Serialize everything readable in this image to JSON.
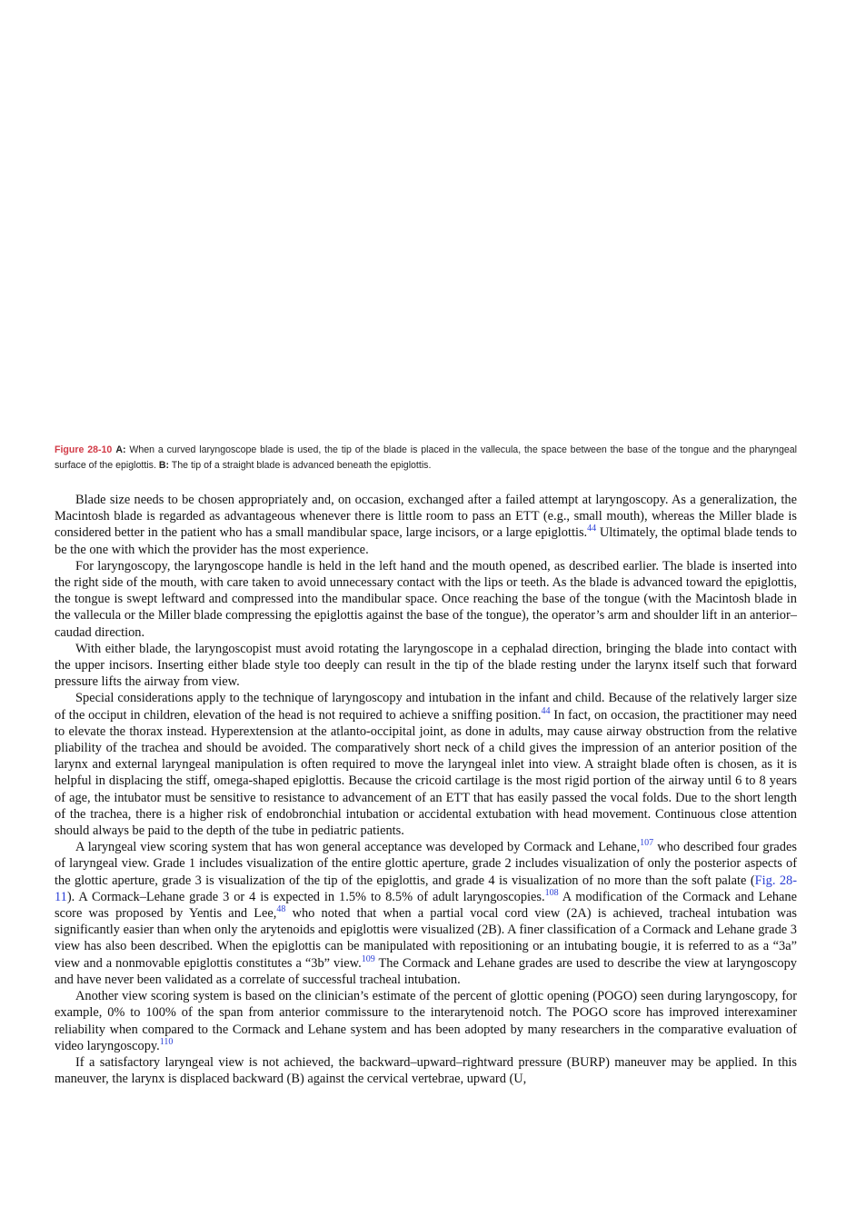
{
  "caption": {
    "label": "Figure 28-10",
    "a_marker": "A:",
    "a_text": " When a curved laryngoscope blade is used, the tip of the blade is placed in the vallecula, the space between the base of the tongue and the pharyngeal surface of the epiglottis. ",
    "b_marker": "B:",
    "b_text": " The tip of a straight blade is advanced beneath the epiglottis."
  },
  "paragraphs": {
    "p1": {
      "a": "Blade size needs to be chosen appropriately and, on occasion, exchanged after a failed attempt at laryngoscopy. As a generalization, the Macintosh blade is regarded as advantageous whenever there is little room to pass an ETT (e.g., small mouth), whereas the Miller blade is considered better in the patient who has a small mandibular space, large incisors, or a large epiglottis.",
      "ref1": "44",
      "b": " Ultimately, the optimal blade tends to be the one with which the provider has the most experience."
    },
    "p2": {
      "a": "For laryngoscopy, the laryngoscope handle is held in the left hand and the mouth opened, as described earlier. The blade is inserted into the right side of the mouth, with care taken to avoid unnecessary contact with the lips or teeth. As the blade is advanced toward the epiglottis, the tongue is swept leftward and compressed into the mandibular space. Once reaching the base of the tongue (with the Macintosh blade in the vallecula or the Miller blade compressing the epiglottis against the base of the tongue), the operator’s arm and shoulder lift in an anterior–caudad direction."
    },
    "p3": {
      "a": "With either blade, the laryngoscopist must avoid rotating the laryngoscope in a cephalad direction, bringing the blade into contact with the upper incisors. Inserting either blade style too deeply can result in the tip of the blade resting under the larynx itself such that forward pressure lifts the airway from view."
    },
    "p4": {
      "a": "Special considerations apply to the technique of laryngoscopy and intubation in the infant and child. Because of the relatively larger size of the occiput in children, elevation of the head is not required to achieve a sniffing position.",
      "ref1": "44",
      "b": " In fact, on occasion, the practitioner may need to elevate the thorax instead. Hyperextension at the atlanto-occipital joint, as done in adults, may cause airway obstruction from the relative pliability of the trachea and should be avoided. The comparatively short neck of a child gives the impression of an anterior position of the larynx and external laryngeal manipulation is often required to move the laryngeal inlet into view. A straight blade often is chosen, as it is helpful in displacing the stiff, omega-shaped epiglottis. Because the cricoid cartilage is the most rigid portion of the airway until 6 to 8 years of age, the intubator must be sensitive to resistance to advancement of an ETT that has easily passed the vocal folds. Due to the short length of the trachea, there is a higher risk of endobronchial intubation or accidental extubation with head movement. Continuous close attention should always be paid to the depth of the tube in pediatric patients."
    },
    "p5": {
      "a": "A laryngeal view scoring system that has won general acceptance was developed by Cormack and Lehane,",
      "ref1": "107",
      "b": " who described four grades of laryngeal view. Grade 1 includes visualization of the entire glottic aperture, grade 2 includes visualization of only the posterior aspects of the glottic aperture, grade 3 is visualization of the tip of the epiglottis, and grade 4 is visualization of no more than the soft palate (",
      "link": "Fig. 28-11",
      "c": "). A Cormack–Lehane grade 3 or 4 is expected in 1.5% to 8.5% of adult laryngoscopies.",
      "ref2": "108",
      "d": " A modification of the Cormack and Lehane score was proposed by Yentis and Lee,",
      "ref3": "48",
      "e": " who noted that when a partial vocal cord view (2A) is achieved, tracheal intubation was significantly easier than when only the arytenoids and epiglottis were visualized (2B). A finer classification of a Cormack and Lehane grade 3 view has also been described. When the epiglottis can be manipulated with repositioning or an intubating bougie, it is referred to as a “3a” view and a nonmovable epiglottis constitutes a “3b” view.",
      "ref4": "109",
      "f": " The Cormack and Lehane grades are used to describe the view at laryngoscopy and have never been validated as a correlate of successful tracheal intubation."
    },
    "p6": {
      "a": "Another view scoring system is based on the clinician’s estimate of the percent of glottic opening (POGO) seen during laryngoscopy, for example, 0% to 100% of the span from anterior commissure to the interarytenoid notch. The POGO score has improved interexaminer reliability when compared to the Cormack and Lehane system and has been adopted by many researchers in the comparative evaluation of video laryngoscopy.",
      "ref1": "110"
    },
    "p7": {
      "a": "If a satisfactory laryngeal view is not achieved, the backward–upward–rightward pressure (BURP) maneuver may be applied. In this maneuver, the larynx is displaced backward (B) against the cervical vertebrae, upward (U,"
    }
  }
}
